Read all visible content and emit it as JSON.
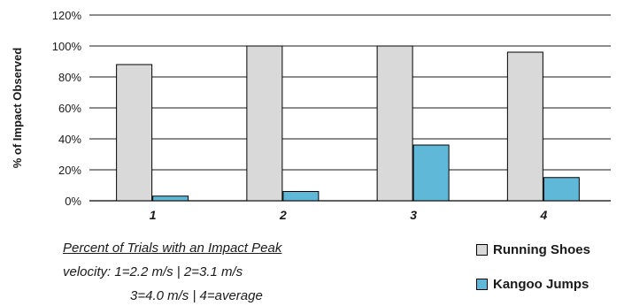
{
  "chart_data": {
    "type": "bar",
    "title": "",
    "ylabel": "% of Impact Observed",
    "xlabel": "",
    "categories": [
      "1",
      "2",
      "3",
      "4"
    ],
    "ylim": [
      0,
      120
    ],
    "yticks": [
      "0%",
      "20%",
      "40%",
      "60%",
      "80%",
      "100%",
      "120%"
    ],
    "grid": true,
    "series": [
      {
        "name": "Running Shoes",
        "values": [
          88,
          100,
          100,
          96
        ],
        "color": "#d9d9d9"
      },
      {
        "name": "Kangoo Jumps",
        "values": [
          3,
          6,
          36,
          15
        ],
        "color": "#5fb8d8"
      }
    ],
    "legend_position": "bottom-right"
  },
  "notes": {
    "title": "Percent of Trials with an Impact Peak",
    "line1": "velocity:  1=2.2 m/s   |   2=3.1 m/s",
    "line2": "3=4.0 m/s   |   4=average"
  }
}
